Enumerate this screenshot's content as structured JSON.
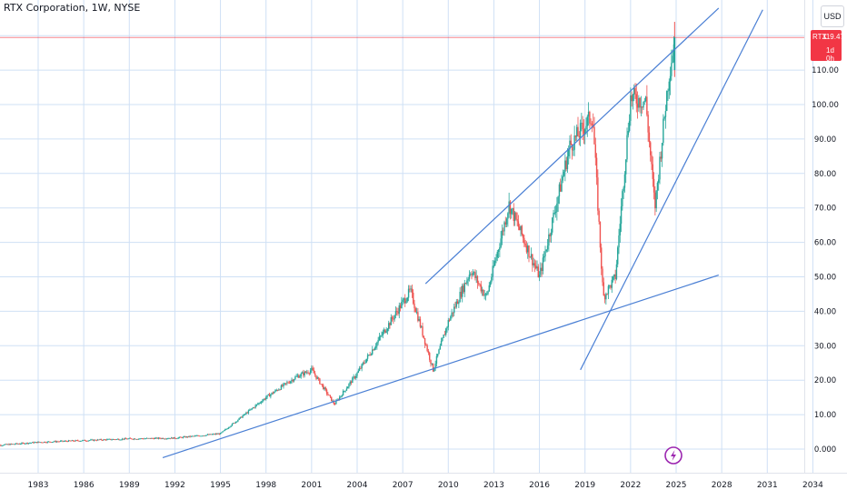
{
  "header": {
    "title": "RTX Corporation, 1W, NYSE",
    "currency": "USD"
  },
  "last_price": {
    "symbol": "RTX",
    "value": "119.47",
    "countdown": "1d 0h",
    "color": "#f23645"
  },
  "colors": {
    "up": "#26a69a",
    "down": "#ef5350",
    "trendline": "#4a7fd4",
    "grid": "#cfe0f5",
    "last_price_line": "#f23645"
  },
  "event_icon": "lightning-icon",
  "chart_data": {
    "type": "candlestick",
    "title": "RTX Corporation, 1W, NYSE",
    "xlabel": "",
    "ylabel": "",
    "xlim": [
      1980.2,
      2025.6
    ],
    "ylim": [
      -3,
      130
    ],
    "x_ticks": [
      "1983",
      "1986",
      "1989",
      "1992",
      "1995",
      "1998",
      "2001",
      "2004",
      "2007",
      "2010",
      "2013",
      "2016",
      "2019",
      "2022",
      "2025",
      "2028",
      "2031",
      "2034"
    ],
    "y_ticks": [
      "0.000",
      "10.00",
      "20.00",
      "30.00",
      "40.00",
      "50.00",
      "60.00",
      "70.00",
      "80.00",
      "90.00",
      "100.00",
      "110.00"
    ],
    "last_price": 119.47,
    "approx_close_path": [
      [
        1980.0,
        1.0
      ],
      [
        1983.0,
        2.0
      ],
      [
        1989.0,
        3.0
      ],
      [
        1992.0,
        3.2
      ],
      [
        1995.0,
        4.5
      ],
      [
        1998.0,
        15.0
      ],
      [
        2000.0,
        21.0
      ],
      [
        2001.0,
        23.0
      ],
      [
        2002.5,
        13.0
      ],
      [
        2004.0,
        22.0
      ],
      [
        2007.5,
        46.0
      ],
      [
        2009.0,
        23.0
      ],
      [
        2010.0,
        37.0
      ],
      [
        2011.5,
        52.0
      ],
      [
        2012.5,
        44.0
      ],
      [
        2014.0,
        71.0
      ],
      [
        2016.0,
        50.0
      ],
      [
        2018.0,
        88.0
      ],
      [
        2019.5,
        97.0
      ],
      [
        2020.2,
        44.0
      ],
      [
        2021.0,
        50.0
      ],
      [
        2022.0,
        102.0
      ],
      [
        2023.0,
        101.0
      ],
      [
        2023.6,
        70.0
      ],
      [
        2024.5,
        108.0
      ],
      [
        2024.9,
        119.47
      ]
    ],
    "trendlines": [
      {
        "from": [
          1991.2,
          -2.5
        ],
        "to": [
          2027.8,
          50.5
        ]
      },
      {
        "from": [
          2008.5,
          48.0
        ],
        "to": [
          2027.8,
          128.0
        ]
      },
      {
        "from": [
          2018.7,
          23.0
        ],
        "to": [
          2030.7,
          127.5
        ]
      }
    ],
    "grid": true
  }
}
